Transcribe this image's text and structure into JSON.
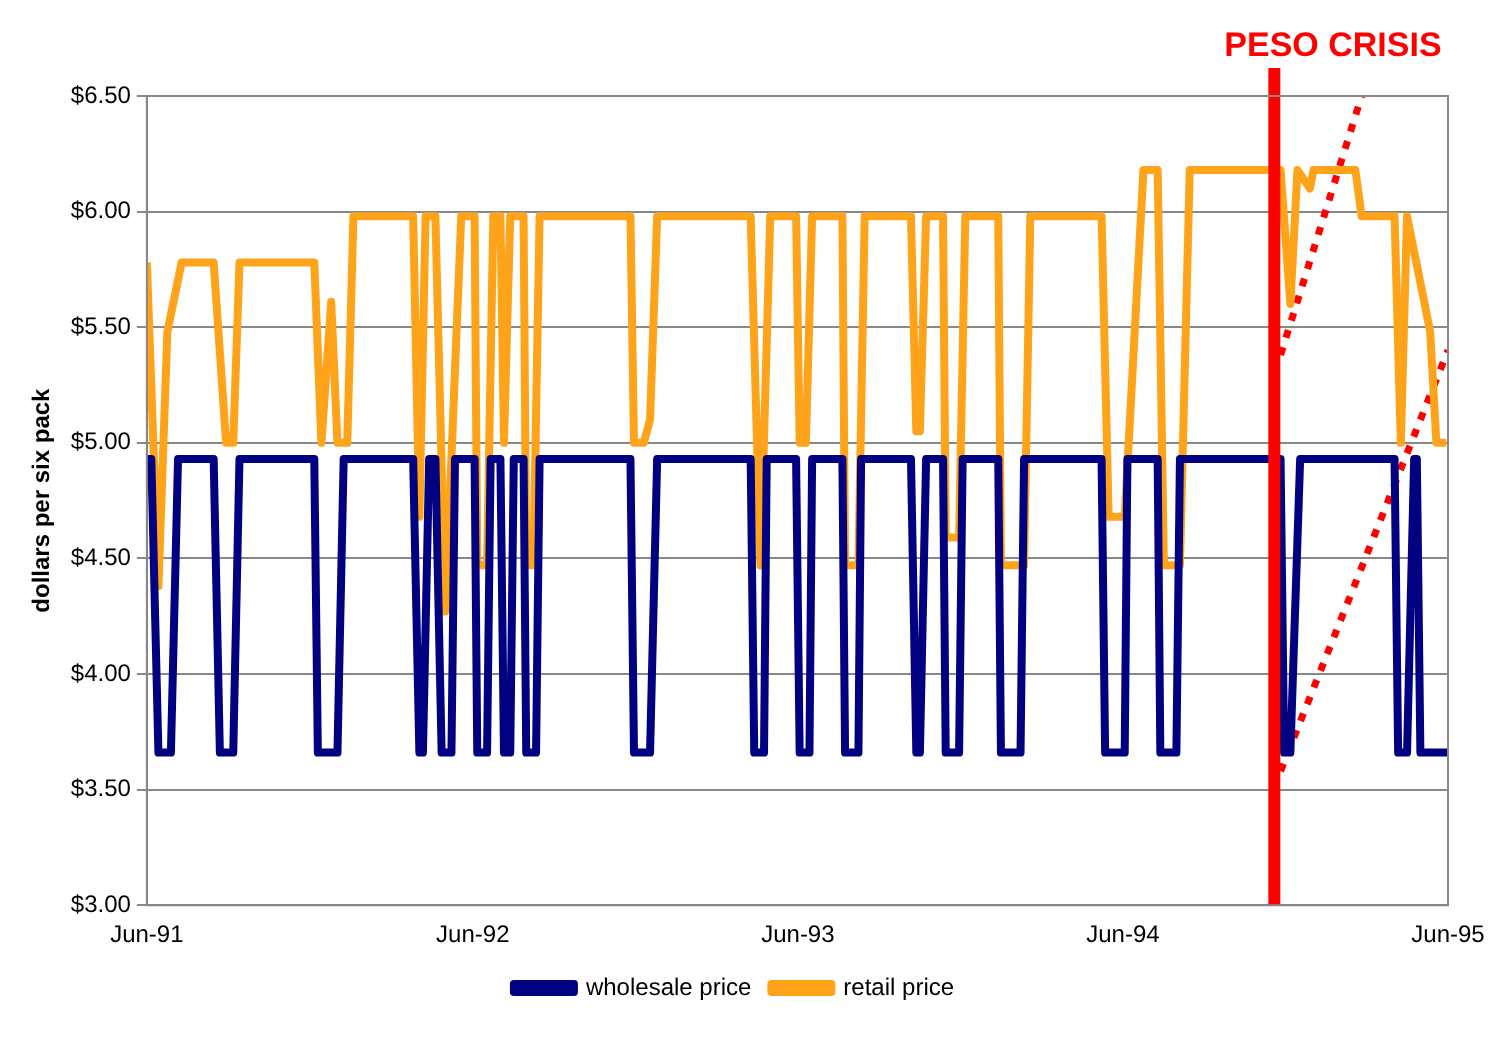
{
  "chart_data": {
    "type": "line",
    "ylabel": "dollars per six pack",
    "xlim": [
      "1991-06",
      "1995-06"
    ],
    "ylim": [
      3,
      6.5
    ],
    "xticks": [
      {
        "value": "1991-06",
        "label": "Jun-91"
      },
      {
        "value": "1992-06",
        "label": "Jun-92"
      },
      {
        "value": "1993-06",
        "label": "Jun-93"
      },
      {
        "value": "1994-06",
        "label": "Jun-94"
      },
      {
        "value": "1995-06",
        "label": "Jun-95"
      }
    ],
    "yticks": [
      {
        "value": 3,
        "label": "$3.00"
      },
      {
        "value": 3.5,
        "label": "$3.50"
      },
      {
        "value": 4,
        "label": "$4.00"
      },
      {
        "value": 4.5,
        "label": "$4.50"
      },
      {
        "value": 5,
        "label": "$5.00"
      },
      {
        "value": 5.5,
        "label": "$5.50"
      },
      {
        "value": 6,
        "label": "$6.00"
      },
      {
        "value": 6.5,
        "label": "$6.50"
      }
    ],
    "grid": "y",
    "legend": "bottom",
    "marker": "none",
    "ref_lines": [
      {
        "axis": "x",
        "value": "1994-11-18",
        "label": "PESO CRISIS",
        "color": "#ff0000"
      }
    ],
    "series": [
      {
        "name": "wholesale price",
        "color": "#000080",
        "x": [
          "1991-06-01",
          "1991-06-06",
          "1991-06-14",
          "1991-06-28",
          "1991-07-06",
          "1991-08-15",
          "1991-08-22",
          "1991-09-06",
          "1991-09-13",
          "1991-12-06",
          "1991-12-10",
          "1992-01-01",
          "1992-01-08",
          "1992-03-26",
          "1992-04-02",
          "1992-04-06",
          "1992-04-13",
          "1992-04-20",
          "1992-04-27",
          "1992-05-08",
          "1992-05-12",
          "1992-06-03",
          "1992-06-06",
          "1992-06-17",
          "1992-06-21",
          "1992-07-02",
          "1992-07-06",
          "1992-07-13",
          "1992-07-17",
          "1992-07-28",
          "1992-07-31",
          "1992-08-11",
          "1992-08-15",
          "1992-11-25",
          "1992-11-29",
          "1992-12-17",
          "1992-12-25",
          "1993-04-09",
          "1993-04-13",
          "1993-04-24",
          "1993-04-27",
          "1993-05-30",
          "1993-06-03",
          "1993-06-14",
          "1993-06-17",
          "1993-07-21",
          "1993-07-24",
          "1993-08-08",
          "1993-08-11",
          "1993-10-06",
          "1993-10-12",
          "1993-10-16",
          "1993-10-23",
          "1993-11-11",
          "1993-11-14",
          "1993-11-29",
          "1993-12-03",
          "1994-01-12",
          "1994-01-15",
          "1994-02-06",
          "1994-02-10",
          "1994-05-08",
          "1994-05-12",
          "1994-06-03",
          "1994-06-06",
          "1994-07-10",
          "1994-07-13",
          "1994-07-31",
          "1994-08-04",
          "1994-11-25",
          "1994-11-29",
          "1994-12-06",
          "1994-12-17",
          "1995-04-02",
          "1995-04-06",
          "1995-04-16",
          "1995-04-24",
          "1995-04-27",
          "1995-05-01",
          "1995-06-01"
        ],
        "values": [
          4.93,
          4.93,
          3.66,
          3.66,
          4.93,
          4.93,
          3.66,
          3.66,
          4.93,
          4.93,
          3.66,
          3.66,
          4.93,
          4.93,
          3.66,
          3.66,
          4.93,
          4.93,
          3.66,
          3.66,
          4.93,
          4.93,
          3.66,
          3.66,
          4.93,
          4.93,
          3.66,
          3.66,
          4.93,
          4.93,
          3.66,
          3.66,
          4.93,
          4.93,
          3.66,
          3.66,
          4.93,
          4.93,
          3.66,
          3.66,
          4.93,
          4.93,
          3.66,
          3.66,
          4.93,
          4.93,
          3.66,
          3.66,
          4.93,
          4.93,
          3.66,
          3.66,
          4.93,
          4.93,
          3.66,
          3.66,
          4.93,
          4.93,
          3.66,
          3.66,
          4.93,
          4.93,
          3.66,
          3.66,
          4.93,
          4.93,
          3.66,
          3.66,
          4.93,
          4.93,
          3.66,
          3.66,
          4.93,
          4.93,
          3.66,
          3.66,
          4.93,
          4.93,
          3.66,
          3.66
        ]
      },
      {
        "name": "retail price",
        "color": "#ffa31a",
        "x": [
          "1991-06-01",
          "1991-06-14",
          "1991-06-24",
          "1991-07-10",
          "1991-08-15",
          "1991-08-29",
          "1991-09-06",
          "1991-09-13",
          "1991-12-06",
          "1991-12-14",
          "1991-12-25",
          "1992-01-01",
          "1992-01-12",
          "1992-01-19",
          "1992-03-26",
          "1992-04-02",
          "1992-04-09",
          "1992-04-20",
          "1992-05-01",
          "1992-05-19",
          "1992-06-03",
          "1992-06-06",
          "1992-06-17",
          "1992-06-24",
          "1992-07-02",
          "1992-07-06",
          "1992-07-13",
          "1992-07-28",
          "1992-07-31",
          "1992-08-08",
          "1992-08-15",
          "1992-11-25",
          "1992-11-29",
          "1992-12-10",
          "1992-12-17",
          "1992-12-25",
          "1993-04-09",
          "1993-04-20",
          "1993-05-01",
          "1993-05-30",
          "1993-06-03",
          "1993-06-10",
          "1993-06-17",
          "1993-07-21",
          "1993-07-24",
          "1993-08-08",
          "1993-08-15",
          "1993-10-06",
          "1993-10-12",
          "1993-10-16",
          "1993-10-23",
          "1993-11-11",
          "1993-11-14",
          "1993-11-29",
          "1993-12-06",
          "1994-01-12",
          "1994-01-15",
          "1994-02-10",
          "1994-02-17",
          "1994-05-08",
          "1994-05-16",
          "1994-06-03",
          "1994-06-24",
          "1994-07-10",
          "1994-07-17",
          "1994-08-04",
          "1994-08-15",
          "1994-11-25",
          "1994-12-06",
          "1994-12-14",
          "1994-12-28",
          "1995-01-01",
          "1995-02-17",
          "1995-02-24",
          "1995-04-02",
          "1995-04-09",
          "1995-04-16",
          "1995-05-12",
          "1995-05-19",
          "1995-05-30"
        ],
        "values": [
          5.78,
          4.38,
          5.48,
          5.78,
          5.78,
          5.0,
          5.0,
          5.78,
          5.78,
          5.0,
          5.61,
          5.0,
          5.0,
          5.98,
          5.98,
          4.68,
          5.98,
          5.98,
          4.27,
          5.98,
          5.98,
          4.47,
          4.47,
          5.98,
          5.98,
          5.0,
          5.98,
          5.98,
          4.47,
          4.47,
          5.98,
          5.98,
          5.0,
          5.0,
          5.1,
          5.98,
          5.98,
          4.47,
          5.98,
          5.98,
          5.0,
          5.0,
          5.98,
          5.98,
          4.47,
          4.47,
          5.98,
          5.98,
          5.05,
          5.05,
          5.98,
          5.98,
          4.59,
          4.59,
          5.98,
          5.98,
          4.47,
          4.47,
          5.98,
          5.98,
          4.68,
          4.68,
          6.18,
          6.18,
          4.47,
          4.47,
          6.18,
          6.18,
          5.6,
          6.18,
          6.1,
          6.18,
          6.18,
          5.98,
          5.98,
          5.0,
          5.98,
          5.48,
          5.0,
          5.0
        ]
      },
      {
        "color": "#ff0000",
        "line_style": "dotted",
        "x": [
          "1994-11-25",
          "1995-02-24"
        ],
        "values": [
          5.38,
          6.5
        ]
      },
      {
        "color": "#ff0000",
        "line_style": "dotted",
        "x": [
          "1994-11-25",
          "1995-06-01"
        ],
        "values": [
          3.58,
          5.4
        ]
      }
    ]
  }
}
